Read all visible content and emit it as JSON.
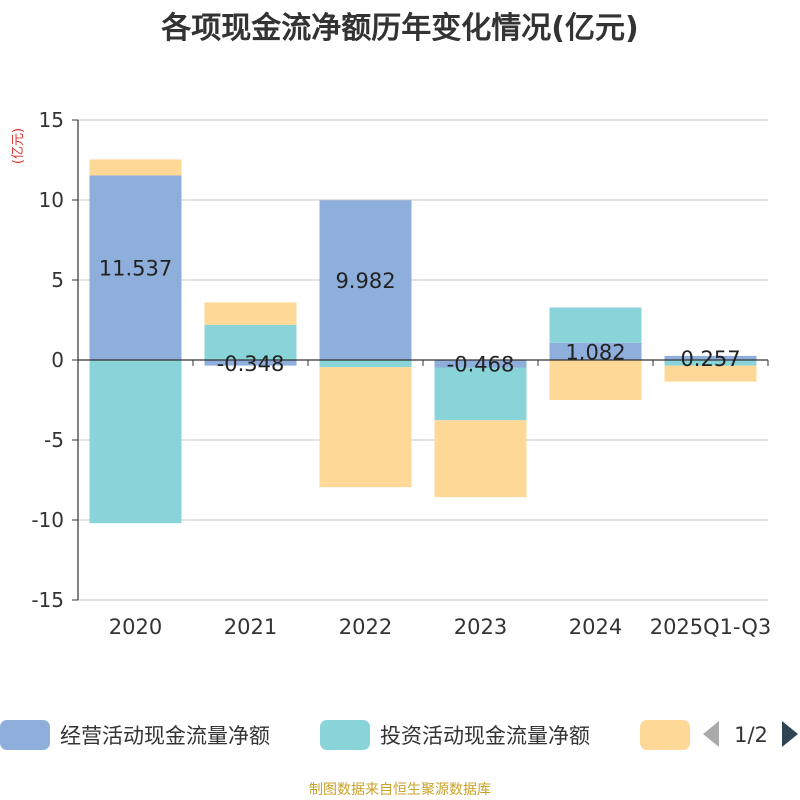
{
  "chart_data": {
    "type": "bar",
    "stacked": true,
    "title": "各项现金流净额历年变化情况(亿元)",
    "ylabel": "(亿元)",
    "ylim": [
      -15,
      15
    ],
    "yticks": [
      15,
      10,
      5,
      0,
      -5,
      -10,
      -15
    ],
    "categories": [
      "2020",
      "2021",
      "2022",
      "2023",
      "2024",
      "2025Q1-Q3"
    ],
    "series": [
      {
        "name": "经营活动现金流量净额",
        "color": "#8eaedb",
        "values": [
          11.537,
          -0.348,
          9.982,
          -0.468,
          1.082,
          0.257
        ],
        "labels": [
          "11.537",
          "-0.348",
          "9.982",
          "-0.468",
          "1.082",
          "0.257"
        ]
      },
      {
        "name": "投资活动现金流量净额",
        "color": "#88d4d8",
        "values": [
          -10.2,
          2.2,
          -0.45,
          -3.3,
          2.2,
          -0.35
        ]
      },
      {
        "name": "",
        "color": "#fed897",
        "values": [
          1.0,
          1.4,
          -7.5,
          -4.8,
          -2.5,
          -1.0
        ]
      }
    ],
    "legend": {
      "position": "bottom",
      "page": "1/2"
    }
  },
  "footer": "制图数据来自恒生聚源数据库"
}
